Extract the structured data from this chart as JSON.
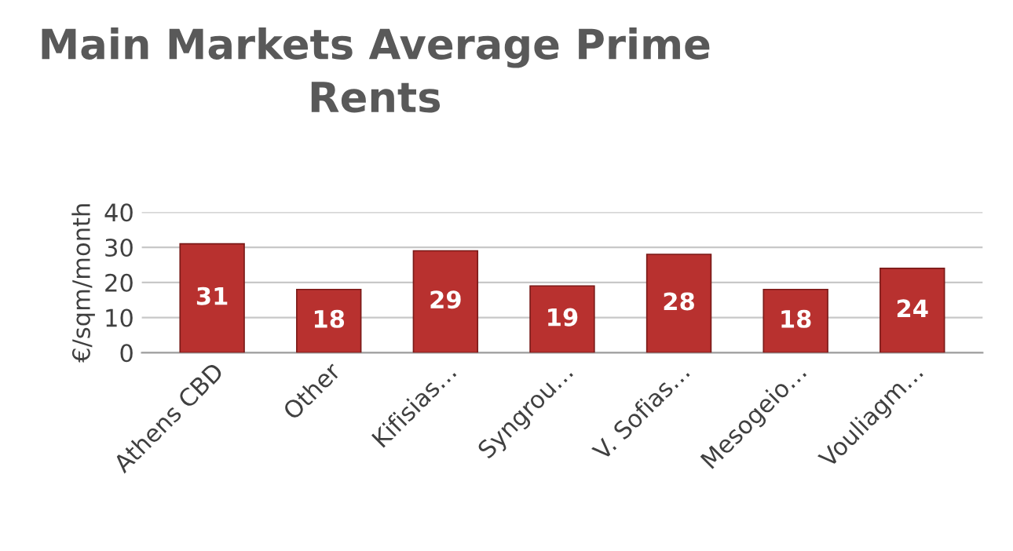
{
  "chart_data": {
    "type": "bar",
    "title": "Main Markets Average Prime\nRents",
    "ylabel": "€/sqm/month",
    "categories": [
      "Athens CBD",
      "Other",
      "Kifisias…",
      "Syngrou…",
      "V. Sofias…",
      "Mesogeio…",
      "Vouliagm…"
    ],
    "values": [
      31,
      18,
      29,
      19,
      28,
      18,
      24
    ],
    "color": "#b8312f",
    "ylim": [
      0,
      40
    ],
    "yticks": [
      0,
      10,
      20,
      30,
      40
    ],
    "grid": "y",
    "data_labels": true,
    "legend": false
  }
}
